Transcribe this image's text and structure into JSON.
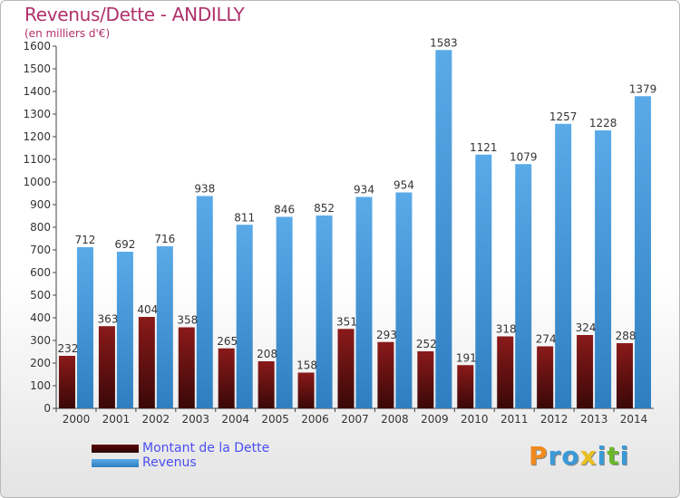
{
  "title": "Revenus/Dette - ANDILLY",
  "subtitle": "(en milliers d'€)",
  "colors": {
    "dette_top": "#8b1a1a",
    "dette_bottom": "#3a0808",
    "revenus_top": "#5aaae8",
    "revenus_bottom": "#2f7fc0",
    "title": "#b0306a",
    "legend_text": "#4a4ef0"
  },
  "chart_data": {
    "type": "bar",
    "categories": [
      "2000",
      "2001",
      "2002",
      "2003",
      "2004",
      "2005",
      "2006",
      "2007",
      "2008",
      "2009",
      "2010",
      "2011",
      "2012",
      "2013",
      "2014"
    ],
    "series": [
      {
        "name": "Montant de la Dette",
        "values": [
          232,
          363,
          404,
          358,
          265,
          208,
          158,
          351,
          293,
          252,
          191,
          318,
          274,
          324,
          288
        ]
      },
      {
        "name": "Revenus",
        "values": [
          712,
          692,
          716,
          938,
          811,
          846,
          852,
          934,
          954,
          1583,
          1121,
          1079,
          1257,
          1228,
          1379
        ]
      }
    ],
    "ylim": [
      0,
      1600
    ],
    "yticks": [
      0,
      100,
      200,
      300,
      400,
      500,
      600,
      700,
      800,
      900,
      1000,
      1100,
      1200,
      1300,
      1400,
      1500,
      1600
    ],
    "grid": false,
    "legend": "bottom-left"
  },
  "legend": {
    "dette_label": "Montant de la Dette",
    "revenus_label": "Revenus"
  },
  "logo": {
    "letters": [
      "P",
      "r",
      "o",
      "x",
      "i",
      "t",
      "i"
    ],
    "colors": [
      "#f08a1c",
      "#3a9ad8",
      "#3a9ad8",
      "#e8c020",
      "#3a9ad8",
      "#6ab82a",
      "#3a9ad8"
    ]
  }
}
